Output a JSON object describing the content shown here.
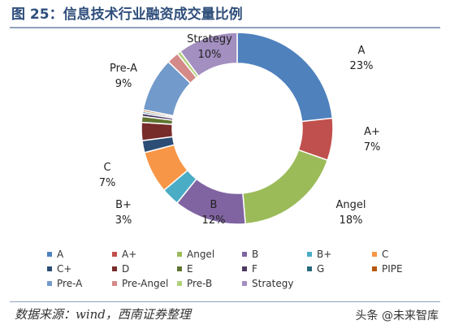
{
  "title": "图 25：信息技术行业融资成交量比例",
  "source": "数据来源：wind，西南证券整理",
  "watermark": "头条 @未来智库",
  "chart_data": {
    "type": "pie",
    "donut": true,
    "legend_position": "bottom",
    "series": [
      {
        "name": "A",
        "value": 23,
        "label": "23%",
        "color": "#4f81bd"
      },
      {
        "name": "A+",
        "value": 7,
        "label": "7%",
        "color": "#c0504d"
      },
      {
        "name": "Angel",
        "value": 18,
        "label": "18%",
        "color": "#9bbb59"
      },
      {
        "name": "B",
        "value": 12,
        "label": "12%",
        "color": "#8064a2"
      },
      {
        "name": "B+",
        "value": 3,
        "label": "3%",
        "color": "#4bacc6"
      },
      {
        "name": "C",
        "value": 7,
        "label": "7%",
        "color": "#f79646"
      },
      {
        "name": "C+",
        "value": 2,
        "label": "",
        "color": "#2c4d75"
      },
      {
        "name": "D",
        "value": 3,
        "label": "",
        "color": "#772c2a"
      },
      {
        "name": "E",
        "value": 1,
        "label": "",
        "color": "#5f7530"
      },
      {
        "name": "F",
        "value": 0.5,
        "label": "",
        "color": "#4d3b62"
      },
      {
        "name": "G",
        "value": 0.3,
        "label": "",
        "color": "#276a7c"
      },
      {
        "name": "PIPE",
        "value": 0.3,
        "label": "",
        "color": "#b65708"
      },
      {
        "name": "Pre-A",
        "value": 9,
        "label": "9%",
        "color": "#729aca"
      },
      {
        "name": "Pre-Angel",
        "value": 2,
        "label": "",
        "color": "#d48a88"
      },
      {
        "name": "Pre-B",
        "value": 0.6,
        "label": "",
        "color": "#b1d07b"
      },
      {
        "name": "Strategy",
        "value": 10,
        "label": "10%",
        "color": "#a38fc0"
      }
    ]
  }
}
